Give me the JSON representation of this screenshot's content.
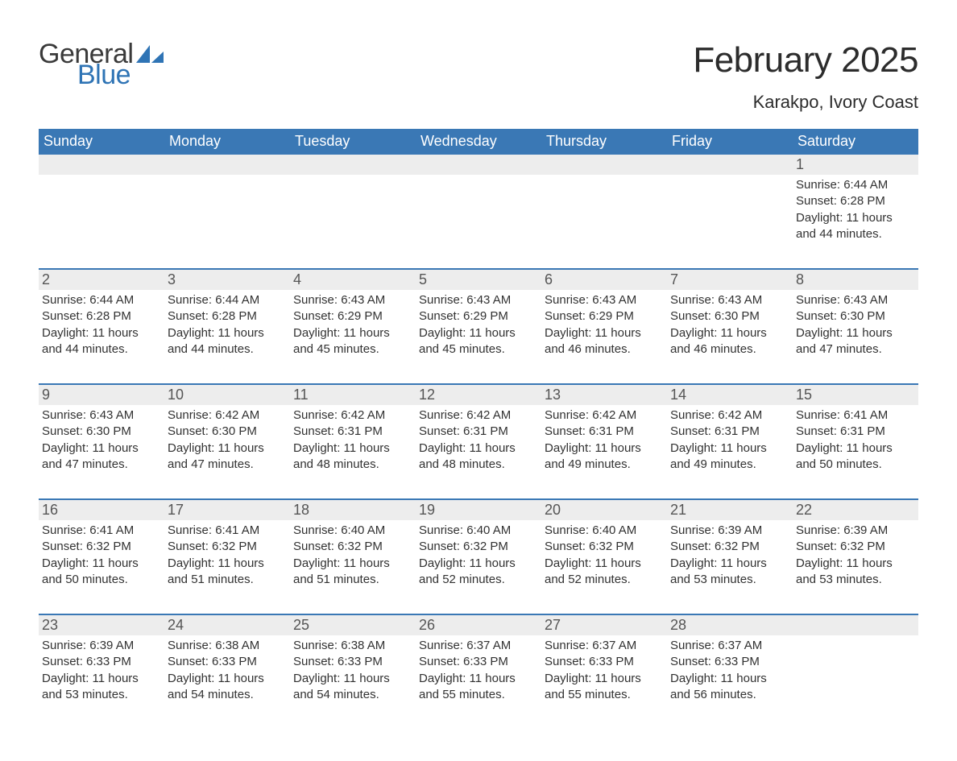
{
  "logo": {
    "text_general": "General",
    "text_blue": "Blue",
    "accent_color": "#2f74b5",
    "text_color": "#3a3a3a"
  },
  "title": "February 2025",
  "location": "Karakpo, Ivory Coast",
  "colors": {
    "header_bg": "#3a78b5",
    "header_text": "#ffffff",
    "strip_bg": "#ededed",
    "strip_border": "#3a78b5",
    "daynum_text": "#555555",
    "body_text": "#323232",
    "page_bg": "#ffffff"
  },
  "weekdays": [
    "Sunday",
    "Monday",
    "Tuesday",
    "Wednesday",
    "Thursday",
    "Friday",
    "Saturday"
  ],
  "labels": {
    "sunrise": "Sunrise:",
    "sunset": "Sunset:",
    "daylight": "Daylight:"
  },
  "weeks": [
    [
      null,
      null,
      null,
      null,
      null,
      null,
      {
        "n": "1",
        "sunrise": "6:44 AM",
        "sunset": "6:28 PM",
        "daylight": "11 hours and 44 minutes."
      }
    ],
    [
      {
        "n": "2",
        "sunrise": "6:44 AM",
        "sunset": "6:28 PM",
        "daylight": "11 hours and 44 minutes."
      },
      {
        "n": "3",
        "sunrise": "6:44 AM",
        "sunset": "6:28 PM",
        "daylight": "11 hours and 44 minutes."
      },
      {
        "n": "4",
        "sunrise": "6:43 AM",
        "sunset": "6:29 PM",
        "daylight": "11 hours and 45 minutes."
      },
      {
        "n": "5",
        "sunrise": "6:43 AM",
        "sunset": "6:29 PM",
        "daylight": "11 hours and 45 minutes."
      },
      {
        "n": "6",
        "sunrise": "6:43 AM",
        "sunset": "6:29 PM",
        "daylight": "11 hours and 46 minutes."
      },
      {
        "n": "7",
        "sunrise": "6:43 AM",
        "sunset": "6:30 PM",
        "daylight": "11 hours and 46 minutes."
      },
      {
        "n": "8",
        "sunrise": "6:43 AM",
        "sunset": "6:30 PM",
        "daylight": "11 hours and 47 minutes."
      }
    ],
    [
      {
        "n": "9",
        "sunrise": "6:43 AM",
        "sunset": "6:30 PM",
        "daylight": "11 hours and 47 minutes."
      },
      {
        "n": "10",
        "sunrise": "6:42 AM",
        "sunset": "6:30 PM",
        "daylight": "11 hours and 47 minutes."
      },
      {
        "n": "11",
        "sunrise": "6:42 AM",
        "sunset": "6:31 PM",
        "daylight": "11 hours and 48 minutes."
      },
      {
        "n": "12",
        "sunrise": "6:42 AM",
        "sunset": "6:31 PM",
        "daylight": "11 hours and 48 minutes."
      },
      {
        "n": "13",
        "sunrise": "6:42 AM",
        "sunset": "6:31 PM",
        "daylight": "11 hours and 49 minutes."
      },
      {
        "n": "14",
        "sunrise": "6:42 AM",
        "sunset": "6:31 PM",
        "daylight": "11 hours and 49 minutes."
      },
      {
        "n": "15",
        "sunrise": "6:41 AM",
        "sunset": "6:31 PM",
        "daylight": "11 hours and 50 minutes."
      }
    ],
    [
      {
        "n": "16",
        "sunrise": "6:41 AM",
        "sunset": "6:32 PM",
        "daylight": "11 hours and 50 minutes."
      },
      {
        "n": "17",
        "sunrise": "6:41 AM",
        "sunset": "6:32 PM",
        "daylight": "11 hours and 51 minutes."
      },
      {
        "n": "18",
        "sunrise": "6:40 AM",
        "sunset": "6:32 PM",
        "daylight": "11 hours and 51 minutes."
      },
      {
        "n": "19",
        "sunrise": "6:40 AM",
        "sunset": "6:32 PM",
        "daylight": "11 hours and 52 minutes."
      },
      {
        "n": "20",
        "sunrise": "6:40 AM",
        "sunset": "6:32 PM",
        "daylight": "11 hours and 52 minutes."
      },
      {
        "n": "21",
        "sunrise": "6:39 AM",
        "sunset": "6:32 PM",
        "daylight": "11 hours and 53 minutes."
      },
      {
        "n": "22",
        "sunrise": "6:39 AM",
        "sunset": "6:32 PM",
        "daylight": "11 hours and 53 minutes."
      }
    ],
    [
      {
        "n": "23",
        "sunrise": "6:39 AM",
        "sunset": "6:33 PM",
        "daylight": "11 hours and 53 minutes."
      },
      {
        "n": "24",
        "sunrise": "6:38 AM",
        "sunset": "6:33 PM",
        "daylight": "11 hours and 54 minutes."
      },
      {
        "n": "25",
        "sunrise": "6:38 AM",
        "sunset": "6:33 PM",
        "daylight": "11 hours and 54 minutes."
      },
      {
        "n": "26",
        "sunrise": "6:37 AM",
        "sunset": "6:33 PM",
        "daylight": "11 hours and 55 minutes."
      },
      {
        "n": "27",
        "sunrise": "6:37 AM",
        "sunset": "6:33 PM",
        "daylight": "11 hours and 55 minutes."
      },
      {
        "n": "28",
        "sunrise": "6:37 AM",
        "sunset": "6:33 PM",
        "daylight": "11 hours and 56 minutes."
      },
      null
    ]
  ]
}
